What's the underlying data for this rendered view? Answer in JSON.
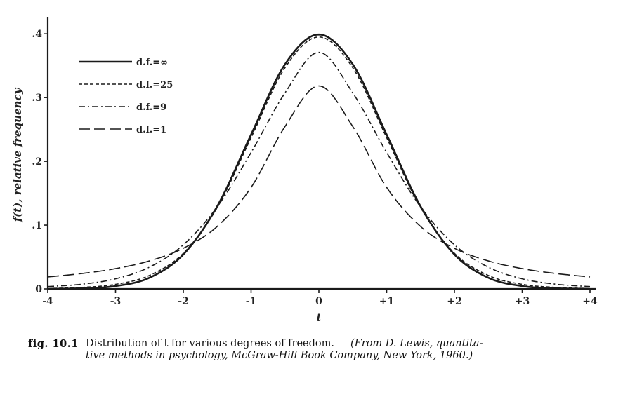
{
  "chart_data": {
    "type": "line",
    "title": "",
    "xlabel": "t",
    "ylabel": "f(t), relative frequency",
    "xlim": [
      -4,
      4
    ],
    "ylim": [
      0,
      0.42
    ],
    "x_ticks": [
      -4,
      -3,
      -2,
      -1,
      0,
      1,
      2,
      3,
      4
    ],
    "x_tick_labels": [
      "-4",
      "-3",
      "-2",
      "-1",
      "0",
      "+1",
      "+2",
      "+3",
      "+4"
    ],
    "y_ticks": [
      0,
      0.1,
      0.2,
      0.3,
      0.4
    ],
    "y_tick_labels": [
      "0",
      ".1",
      ".2",
      ".3",
      ".4"
    ],
    "grid": false,
    "legend_position": "top-left",
    "x": [
      -4,
      -3.5,
      -3,
      -2.5,
      -2,
      -1.5,
      -1,
      -0.5,
      0,
      0.5,
      1,
      1.5,
      2,
      2.5,
      3,
      3.5,
      4
    ],
    "series": [
      {
        "name": "d.f.=∞",
        "dash": "solid",
        "values": [
          0.0001,
          0.0009,
          0.0044,
          0.0175,
          0.054,
          0.1295,
          0.242,
          0.3521,
          0.3989,
          0.3521,
          0.242,
          0.1295,
          0.054,
          0.0175,
          0.0044,
          0.0009,
          0.0001
        ]
      },
      {
        "name": "d.f.=25",
        "dash": "short-dash",
        "values": [
          0.0006,
          0.0023,
          0.0071,
          0.0211,
          0.0559,
          0.1275,
          0.2372,
          0.3468,
          0.395,
          0.3468,
          0.2372,
          0.1275,
          0.0559,
          0.0211,
          0.0071,
          0.0023,
          0.0006
        ]
      },
      {
        "name": "d.f.=9",
        "dash": "dash-dot",
        "values": [
          0.0036,
          0.0073,
          0.0158,
          0.0341,
          0.0692,
          0.1287,
          0.2139,
          0.3073,
          0.3709,
          0.3073,
          0.2139,
          0.1287,
          0.0692,
          0.0341,
          0.0158,
          0.0073,
          0.0036
        ]
      },
      {
        "name": "d.f.=1",
        "dash": "long-dash",
        "values": [
          0.0187,
          0.0241,
          0.0318,
          0.0439,
          0.0637,
          0.0979,
          0.1592,
          0.2546,
          0.3183,
          0.2546,
          0.1592,
          0.0979,
          0.0637,
          0.0439,
          0.0318,
          0.0241,
          0.0187
        ]
      }
    ]
  },
  "caption": {
    "label": "fig. 10.1",
    "text": "Distribution of t for various degrees of freedom.",
    "source_line1": "(From D. Lewis, quantita-",
    "source_line2": "tive methods in psychology, McGraw-Hill Book Company, New York, 1960.)"
  },
  "colors": {
    "ink": "#1a1a1a",
    "background": "#ffffff"
  }
}
